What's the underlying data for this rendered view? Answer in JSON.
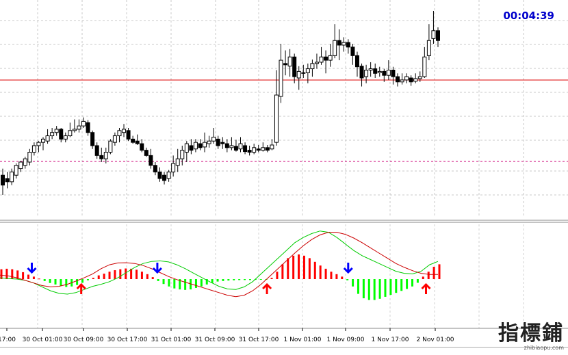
{
  "chart_data": [
    {
      "type": "candlestick",
      "panel": "price",
      "timer": "00:04:39",
      "grid": true,
      "horizontal_lines": [
        {
          "kind": "solid",
          "color": "#dd0000"
        },
        {
          "kind": "dashed",
          "color": "#cc0077"
        }
      ],
      "candles": [
        [
          190,
          175,
          200,
          160
        ],
        [
          185,
          180,
          195,
          170
        ],
        [
          180,
          195,
          200,
          175
        ],
        [
          190,
          205,
          208,
          185
        ],
        [
          200,
          210,
          212,
          195
        ],
        [
          205,
          215,
          218,
          200
        ],
        [
          210,
          225,
          230,
          205
        ],
        [
          225,
          235,
          240,
          220
        ],
        [
          235,
          240,
          242,
          225
        ],
        [
          240,
          245,
          248,
          228
        ],
        [
          242,
          250,
          260,
          238
        ],
        [
          250,
          255,
          262,
          245
        ],
        [
          255,
          260,
          265,
          250
        ],
        [
          260,
          245,
          262,
          240
        ],
        [
          245,
          250,
          255,
          240
        ],
        [
          250,
          258,
          270,
          248
        ],
        [
          258,
          260,
          275,
          255
        ],
        [
          260,
          265,
          275,
          255
        ],
        [
          265,
          272,
          278,
          262
        ],
        [
          270,
          255,
          274,
          250
        ],
        [
          255,
          235,
          258,
          230
        ],
        [
          235,
          220,
          240,
          215
        ],
        [
          220,
          215,
          232,
          210
        ],
        [
          215,
          225,
          232,
          208
        ],
        [
          225,
          242,
          245,
          222
        ],
        [
          240,
          250,
          255,
          235
        ],
        [
          250,
          258,
          262,
          240
        ],
        [
          255,
          260,
          268,
          248
        ],
        [
          258,
          245,
          262,
          242
        ],
        [
          245,
          240,
          250,
          238
        ],
        [
          242,
          238,
          252,
          236
        ],
        [
          238,
          228,
          245,
          225
        ],
        [
          228,
          220,
          232,
          218
        ],
        [
          220,
          205,
          230,
          200
        ],
        [
          205,
          195,
          210,
          190
        ],
        [
          195,
          185,
          202,
          180
        ],
        [
          190,
          182,
          195,
          176
        ],
        [
          185,
          195,
          198,
          180
        ],
        [
          195,
          208,
          220,
          188
        ],
        [
          205,
          215,
          230,
          195
        ],
        [
          215,
          228,
          235,
          205
        ],
        [
          225,
          238,
          242,
          210
        ],
        [
          235,
          228,
          245,
          222
        ],
        [
          230,
          240,
          245,
          225
        ],
        [
          238,
          232,
          245,
          228
        ],
        [
          233,
          240,
          255,
          225
        ],
        [
          238,
          242,
          250,
          232
        ],
        [
          242,
          248,
          262,
          238
        ],
        [
          245,
          235,
          250,
          230
        ],
        [
          240,
          238,
          248,
          230
        ],
        [
          238,
          232,
          245,
          225
        ],
        [
          232,
          235,
          248,
          228
        ],
        [
          234,
          228,
          244,
          226
        ],
        [
          230,
          238,
          248,
          225
        ],
        [
          235,
          226,
          240,
          222
        ],
        [
          228,
          225,
          235,
          220
        ],
        [
          225,
          232,
          238,
          222
        ],
        [
          230,
          228,
          236,
          225
        ],
        [
          228,
          232,
          240,
          226
        ],
        [
          232,
          228,
          236,
          225
        ],
        [
          230,
          236,
          245,
          228
        ],
        [
          240,
          312,
          350,
          235
        ],
        [
          310,
          365,
          390,
          300
        ],
        [
          360,
          358,
          380,
          342
        ],
        [
          356,
          370,
          382,
          340
        ],
        [
          370,
          340,
          375,
          330
        ],
        [
          338,
          348,
          356,
          320
        ],
        [
          346,
          345,
          358,
          338
        ],
        [
          346,
          352,
          360,
          330
        ],
        [
          352,
          360,
          366,
          340
        ],
        [
          360,
          362,
          375,
          352
        ],
        [
          362,
          370,
          385,
          358
        ],
        [
          370,
          365,
          380,
          345
        ],
        [
          365,
          372,
          390,
          355
        ],
        [
          372,
          395,
          420,
          368
        ],
        [
          395,
          388,
          412,
          365
        ],
        [
          388,
          392,
          400,
          378
        ],
        [
          392,
          385,
          397,
          375
        ],
        [
          385,
          372,
          390,
          358
        ],
        [
          372,
          355,
          378,
          340
        ],
        [
          356,
          338,
          360,
          325
        ],
        [
          340,
          350,
          358,
          330
        ],
        [
          350,
          352,
          362,
          340
        ],
        [
          352,
          345,
          360,
          338
        ],
        [
          346,
          348,
          355,
          340
        ],
        [
          348,
          342,
          352,
          332
        ],
        [
          342,
          350,
          365,
          335
        ],
        [
          350,
          340,
          355,
          328
        ],
        [
          340,
          332,
          345,
          325
        ],
        [
          332,
          335,
          345,
          328
        ],
        [
          335,
          340,
          345,
          330
        ],
        [
          338,
          332,
          342,
          326
        ],
        [
          333,
          337,
          345,
          330
        ],
        [
          337,
          340,
          348,
          332
        ],
        [
          340,
          370,
          385,
          338
        ],
        [
          372,
          395,
          420,
          365
        ],
        [
          398,
          410,
          440,
          390
        ],
        [
          410,
          395,
          415,
          385
        ]
      ]
    },
    {
      "type": "bar",
      "panel": "oscillator",
      "bar_colors": {
        "positive": "#ff0000",
        "negative": "#00ff00"
      },
      "line_colors": {
        "signal_a": "#00cc00",
        "signal_b": "#cc0000"
      },
      "histogram": [
        0.4,
        0.42,
        0.4,
        0.35,
        0.28,
        0.18,
        0.1,
        0.02,
        -0.08,
        -0.16,
        -0.22,
        -0.28,
        -0.32,
        -0.3,
        -0.24,
        -0.15,
        -0.05,
        0.05,
        0.15,
        0.22,
        0.3,
        0.36,
        0.4,
        0.43,
        0.42,
        0.38,
        0.3,
        0.2,
        0.08,
        -0.08,
        -0.2,
        -0.3,
        -0.38,
        -0.42,
        -0.44,
        -0.42,
        -0.36,
        -0.3,
        -0.22,
        -0.15,
        -0.1,
        -0.08,
        -0.06,
        -0.05,
        -0.04,
        -0.04,
        -0.04,
        -0.03,
        -0.03,
        -0.02,
        0.05,
        0.3,
        0.6,
        0.85,
        0.95,
        1.0,
        0.95,
        0.85,
        0.7,
        0.55,
        0.42,
        0.3,
        0.2,
        0.1,
        -0.05,
        -0.3,
        -0.6,
        -0.78,
        -0.85,
        -0.85,
        -0.8,
        -0.72,
        -0.64,
        -0.56,
        -0.48,
        -0.4,
        -0.3,
        -0.15,
        0.1,
        0.3,
        0.5,
        0.6
      ],
      "signal_a": [
        0.05,
        0.02,
        0.0,
        -0.05,
        -0.15,
        -0.3,
        -0.45,
        -0.55,
        -0.58,
        -0.52,
        -0.4,
        -0.28,
        -0.2,
        -0.1,
        0.05,
        0.25,
        0.45,
        0.6,
        0.68,
        0.7,
        0.66,
        0.55,
        0.4,
        0.22,
        0.05,
        -0.12,
        -0.28,
        -0.38,
        -0.4,
        -0.3,
        -0.1,
        0.2,
        0.5,
        0.8,
        1.1,
        1.4,
        1.6,
        1.75,
        1.85,
        1.8,
        1.6,
        1.35,
        1.1,
        0.9,
        0.75,
        0.6,
        0.45,
        0.3,
        0.22,
        0.2,
        0.3,
        0.55,
        0.68
      ],
      "signal_b": [
        0.15,
        0.12,
        0.05,
        -0.05,
        -0.15,
        -0.25,
        -0.3,
        -0.28,
        -0.2,
        -0.08,
        0.05,
        0.2,
        0.4,
        0.55,
        0.62,
        0.63,
        0.6,
        0.52,
        0.4,
        0.25,
        0.1,
        -0.02,
        -0.12,
        -0.22,
        -0.32,
        -0.42,
        -0.52,
        -0.62,
        -0.68,
        -0.62,
        -0.45,
        -0.2,
        0.1,
        0.4,
        0.7,
        1.0,
        1.28,
        1.52,
        1.7,
        1.8,
        1.8,
        1.72,
        1.58,
        1.4,
        1.2,
        1.0,
        0.8,
        0.6,
        0.45,
        0.32,
        0.22,
        0.18,
        0.18
      ],
      "arrows": [
        {
          "dir": "down",
          "color": "#0000ff",
          "at": 0.056
        },
        {
          "dir": "up",
          "color": "#ff0000",
          "at": 0.143
        },
        {
          "dir": "down",
          "color": "#0000ff",
          "at": 0.277
        },
        {
          "dir": "up",
          "color": "#ff0000",
          "at": 0.47
        },
        {
          "dir": "down",
          "color": "#0000ff",
          "at": 0.613
        },
        {
          "dir": "up",
          "color": "#ff0000",
          "at": 0.75
        }
      ]
    }
  ],
  "x_axis": {
    "labels": [
      "17:00",
      "30 Oct 01:00",
      "30 Oct 09:00",
      "30 Oct 17:00",
      "31 Oct 01:00",
      "31 Oct 09:00",
      "31 Oct 17:00",
      "1 Nov 01:00",
      "1 Nov 09:00",
      "1 Nov 17:00",
      "2 Nov 01:00"
    ]
  },
  "watermark": {
    "chinese": "指標鋪",
    "site": "zhibiaopu.com"
  }
}
